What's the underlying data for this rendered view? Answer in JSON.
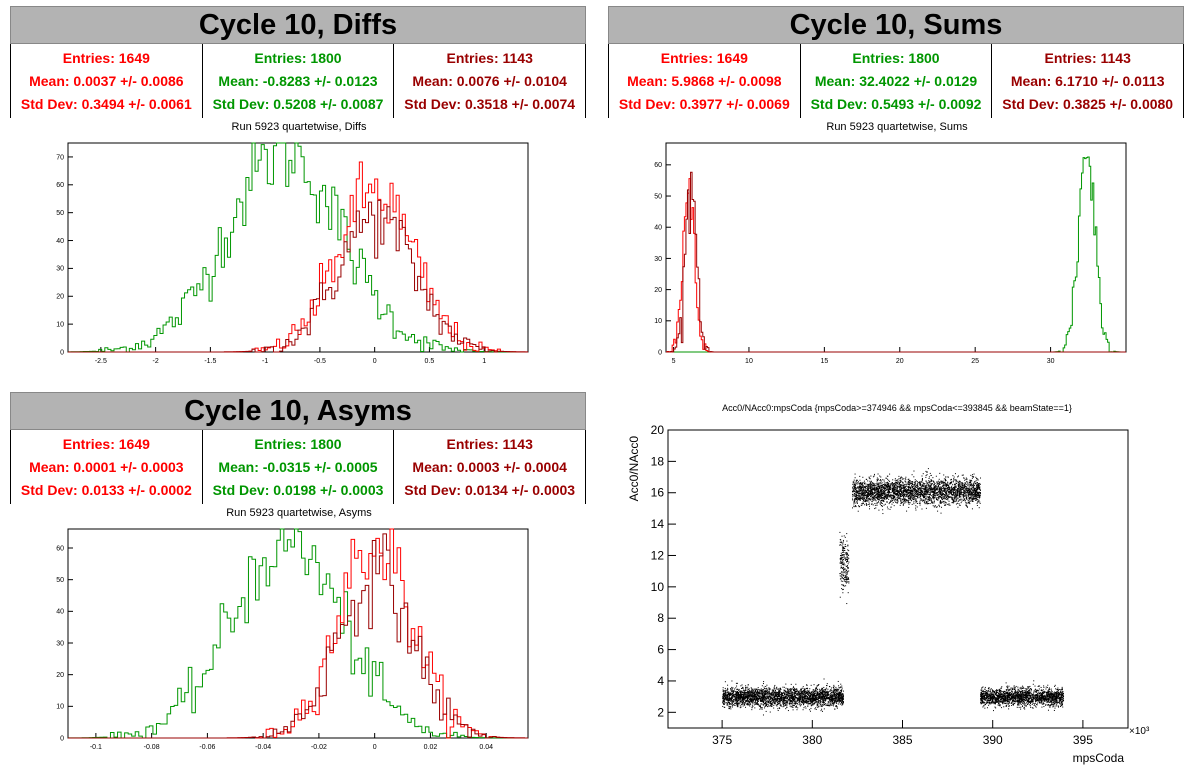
{
  "colors": {
    "red": "#ff0000",
    "green": "#009600",
    "darkred": "#990000",
    "black": "#000000"
  },
  "panels": {
    "diffs": {
      "title": "Cycle 10, Diffs",
      "stats": [
        {
          "entries": "Entries: 1649",
          "mean": "Mean: 0.0037 +/- 0.0086",
          "std": "Std Dev: 0.3494 +/- 0.0061",
          "color": "#ff0000"
        },
        {
          "entries": "Entries: 1800",
          "mean": "Mean: -0.8283 +/- 0.0123",
          "std": "Std Dev: 0.5208 +/- 0.0087",
          "color": "#009600"
        },
        {
          "entries": "Entries: 1143",
          "mean": "Mean: 0.0076 +/- 0.0104",
          "std": "Std Dev: 0.3518 +/- 0.0074",
          "color": "#990000"
        }
      ],
      "subtitle": "Run 5923 quartetwise, Diffs"
    },
    "sums": {
      "title": "Cycle 10, Sums",
      "stats": [
        {
          "entries": "Entries: 1649",
          "mean": "Mean: 5.9868 +/- 0.0098",
          "std": "Std Dev: 0.3977 +/- 0.0069",
          "color": "#ff0000"
        },
        {
          "entries": "Entries: 1800",
          "mean": "Mean: 32.4022 +/- 0.0129",
          "std": "Std Dev: 0.5493 +/- 0.0092",
          "color": "#009600"
        },
        {
          "entries": "Entries: 1143",
          "mean": "Mean: 6.1710 +/- 0.0113",
          "std": "Std Dev: 0.3825 +/- 0.0080",
          "color": "#990000"
        }
      ],
      "subtitle": "Run 5923 quartetwise, Sums"
    },
    "asyms": {
      "title": "Cycle 10, Asyms",
      "stats": [
        {
          "entries": "Entries: 1649",
          "mean": "Mean: 0.0001 +/- 0.0003",
          "std": "Std Dev: 0.0133 +/- 0.0002",
          "color": "#ff0000"
        },
        {
          "entries": "Entries: 1800",
          "mean": "Mean: -0.0315 +/- 0.0005",
          "std": "Std Dev: 0.0198 +/- 0.0003",
          "color": "#009600"
        },
        {
          "entries": "Entries: 1143",
          "mean": "Mean: 0.0003 +/- 0.0004",
          "std": "Std Dev: 0.0134 +/- 0.0003",
          "color": "#990000"
        }
      ],
      "subtitle": "Run 5923 quartetwise, Asyms"
    },
    "scatter": {
      "title": "Acc0/NAcc0:mpsCoda {mpsCoda>=374946 && mpsCoda<=393845 && beamState==1}"
    }
  },
  "chart_data": [
    {
      "id": "diffs",
      "type": "histogram",
      "xlim": [
        -2.8,
        1.4
      ],
      "ylim": [
        0,
        75
      ],
      "xticks": [
        -2.5,
        -2,
        -1.5,
        -1,
        -0.5,
        0,
        0.5,
        1
      ],
      "xticklabels": [
        "-2.5",
        "-2",
        "-1.5",
        "-1",
        "-0.5",
        "0",
        "0.5",
        "1"
      ],
      "yticks": [
        0,
        10,
        20,
        30,
        40,
        50,
        60,
        70
      ],
      "series": [
        {
          "color": "#009600",
          "mean": -0.8283,
          "std": 0.5208,
          "entries": 1800,
          "peak": 72
        },
        {
          "color": "#ff0000",
          "mean": 0.0037,
          "std": 0.3494,
          "entries": 1649,
          "peak": 58
        },
        {
          "color": "#990000",
          "mean": 0.0076,
          "std": 0.3518,
          "entries": 1143,
          "peak": 48
        }
      ]
    },
    {
      "id": "sums",
      "type": "histogram",
      "xlim": [
        4.5,
        35
      ],
      "ylim": [
        0,
        67
      ],
      "xticks": [
        5,
        10,
        15,
        20,
        25,
        30
      ],
      "xticklabels": [
        "5",
        "10",
        "15",
        "20",
        "25",
        "30"
      ],
      "yticks": [
        0,
        10,
        20,
        30,
        40,
        50,
        60
      ],
      "series": [
        {
          "color": "#009600",
          "mean": 32.4022,
          "std": 0.5493,
          "entries": 1800,
          "peak": 65
        },
        {
          "color": "#ff0000",
          "mean": 5.9868,
          "std": 0.3977,
          "entries": 1649,
          "peak": 50
        },
        {
          "color": "#990000",
          "mean": 6.171,
          "std": 0.3825,
          "entries": 1143,
          "peak": 53
        }
      ]
    },
    {
      "id": "asyms",
      "type": "histogram",
      "xlim": [
        -0.11,
        0.055
      ],
      "ylim": [
        0,
        66
      ],
      "xticks": [
        -0.1,
        -0.08,
        -0.06,
        -0.04,
        -0.02,
        0,
        0.02,
        0.04
      ],
      "xticklabels": [
        "-0.1",
        "-0.08",
        "-0.06",
        "-0.04",
        "-0.02",
        "0",
        "0.02",
        "0.04"
      ],
      "yticks": [
        0,
        10,
        20,
        30,
        40,
        50,
        60
      ],
      "series": [
        {
          "color": "#009600",
          "mean": -0.0315,
          "std": 0.0198,
          "entries": 1800,
          "peak": 62
        },
        {
          "color": "#ff0000",
          "mean": 0.0001,
          "std": 0.0133,
          "entries": 1649,
          "peak": 62
        },
        {
          "color": "#990000",
          "mean": 0.0003,
          "std": 0.0134,
          "entries": 1143,
          "peak": 52
        }
      ]
    },
    {
      "id": "scatter",
      "type": "scatter",
      "xlim": [
        372,
        397.5
      ],
      "ylim": [
        1,
        20
      ],
      "xticks": [
        375,
        380,
        385,
        390,
        395
      ],
      "xticklabels": [
        "375",
        "380",
        "385",
        "390",
        "395"
      ],
      "yticks": [
        2,
        4,
        6,
        8,
        10,
        12,
        14,
        16,
        18,
        20
      ],
      "yticklabels": [
        "2",
        "4",
        "6",
        "8",
        "10",
        "12",
        "14",
        "16",
        "18",
        "20"
      ],
      "xlabel": "mpsCoda",
      "ylabel": "Acc0/NAcc0",
      "xexponent": "×10³",
      "clusters": [
        {
          "x0": 375.0,
          "x1": 381.7,
          "ycenter": 3.0,
          "yspread": 0.55
        },
        {
          "x0": 381.5,
          "x1": 382.0,
          "ycenter": 11.5,
          "yspread": 1.5
        },
        {
          "x0": 382.2,
          "x1": 389.3,
          "ycenter": 16.1,
          "yspread": 0.75
        },
        {
          "x0": 389.3,
          "x1": 393.9,
          "ycenter": 3.0,
          "yspread": 0.5
        }
      ]
    }
  ]
}
